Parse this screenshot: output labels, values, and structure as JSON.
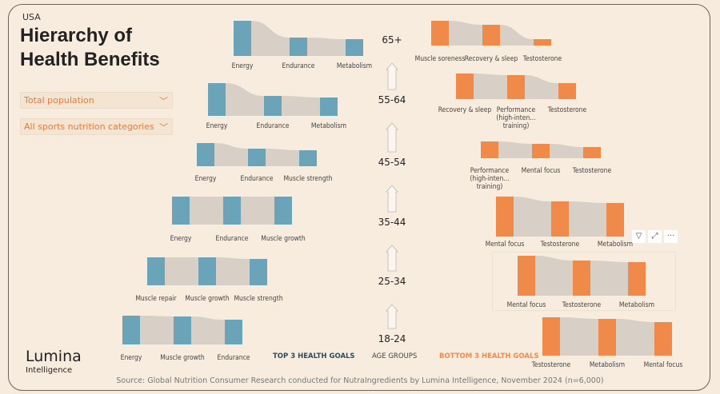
{
  "header": {
    "country": "USA",
    "title": "Hierarchy of Health Benefits"
  },
  "filters": [
    {
      "label": "Total population",
      "icon": "chevron-down-icon"
    },
    {
      "label": "All sports nutrition categories",
      "icon": "chevron-down-icon"
    }
  ],
  "legend": {
    "top": "TOP 3 HEALTH GOALS",
    "age": "AGE GROUPS",
    "bottom": "BOTTOM 3 HEALTH GOALS"
  },
  "logo": {
    "name": "Lumina",
    "sub": "Intelligence"
  },
  "source": "Source: Global Nutrition Consumer Research conducted for NutraIngredients by Lumina Intelligence, November 2024 (n=6,000)",
  "colors": {
    "top": "#6ba3b8",
    "bottom": "#f08a4b",
    "ribbon": "#d8d0c7"
  },
  "visual_tools": [
    "filter-icon",
    "focus-mode-icon",
    "more-options-icon"
  ],
  "chart_data": {
    "type": "bar",
    "age_groups": [
      "65+",
      "55-64",
      "45-54",
      "35-44",
      "25-34",
      "18-24"
    ],
    "top": [
      {
        "labels": [
          "Energy",
          "Endurance",
          "Metabolism"
        ],
        "values": [
          44,
          23,
          21
        ]
      },
      {
        "labels": [
          "Energy",
          "Endurance",
          "Metabolism"
        ],
        "values": [
          41,
          25,
          23
        ]
      },
      {
        "labels": [
          "Energy",
          "Endurance",
          "Muscle strength"
        ],
        "values": [
          29,
          22,
          20
        ]
      },
      {
        "labels": [
          "Energy",
          "Endurance",
          "Muscle growth"
        ],
        "values": [
          35,
          35,
          35
        ]
      },
      {
        "labels": [
          "Muscle repair",
          "Muscle growth",
          "Muscle strength"
        ],
        "values": [
          35,
          35,
          33
        ]
      },
      {
        "labels": [
          "Energy",
          "Muscle growth",
          "Endurance"
        ],
        "values": [
          36,
          35,
          31
        ]
      }
    ],
    "bottom": [
      {
        "labels": [
          "Muscle soreness",
          "Recovery & sleep",
          "Testosterone"
        ],
        "values": [
          31,
          26,
          8
        ]
      },
      {
        "labels": [
          "Recovery & sleep",
          "Performance (high-inten... training)",
          "Testosterone"
        ],
        "values": [
          32,
          30,
          20
        ]
      },
      {
        "labels": [
          "Performance (high-inten... training)",
          "Mental focus",
          "Testosterone"
        ],
        "values": [
          21,
          18,
          14
        ]
      },
      {
        "labels": [
          "Mental focus",
          "Testosterone",
          "Metabolism"
        ],
        "values": [
          50,
          44,
          42
        ]
      },
      {
        "labels": [
          "Mental focus",
          "Testosterone",
          "Metabolism"
        ],
        "values": [
          50,
          44,
          42
        ]
      },
      {
        "labels": [
          "Testosterone",
          "Metabolism",
          "Mental focus"
        ],
        "values": [
          48,
          46,
          42
        ]
      }
    ]
  }
}
